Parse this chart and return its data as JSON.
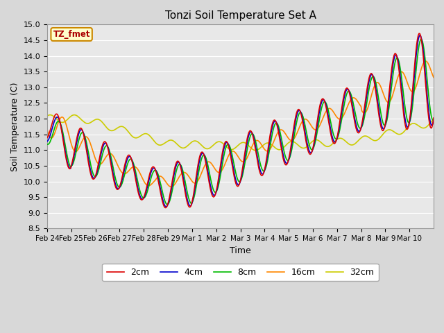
{
  "title": "Tonzi Soil Temperature Set A",
  "xlabel": "Time",
  "ylabel": "Soil Temperature (C)",
  "ylim": [
    8.5,
    15.0
  ],
  "legend_label": "TZ_fmet",
  "legend_box_color": "#ffffcc",
  "legend_box_edgecolor": "#cc8800",
  "series_labels": [
    "2cm",
    "4cm",
    "8cm",
    "16cm",
    "32cm"
  ],
  "series_colors": [
    "#dd0000",
    "#0000cc",
    "#00bb00",
    "#ff8800",
    "#cccc00"
  ],
  "xtick_labels": [
    "Feb 24",
    "Feb 25",
    "Feb 26",
    "Feb 27",
    "Feb 28",
    "Feb 29",
    "Mar 1",
    "Mar 2",
    "Mar 3",
    "Mar 4",
    "Mar 5",
    "Mar 6",
    "Mar 7",
    "Mar 8",
    "Mar 9",
    "Mar 10"
  ],
  "bg_color": "#e8e8e8",
  "grid_color": "#ffffff",
  "yticks": [
    8.5,
    9.0,
    9.5,
    10.0,
    10.5,
    11.0,
    11.5,
    12.0,
    12.5,
    13.0,
    13.5,
    14.0,
    14.5,
    15.0
  ],
  "n_points": 480
}
